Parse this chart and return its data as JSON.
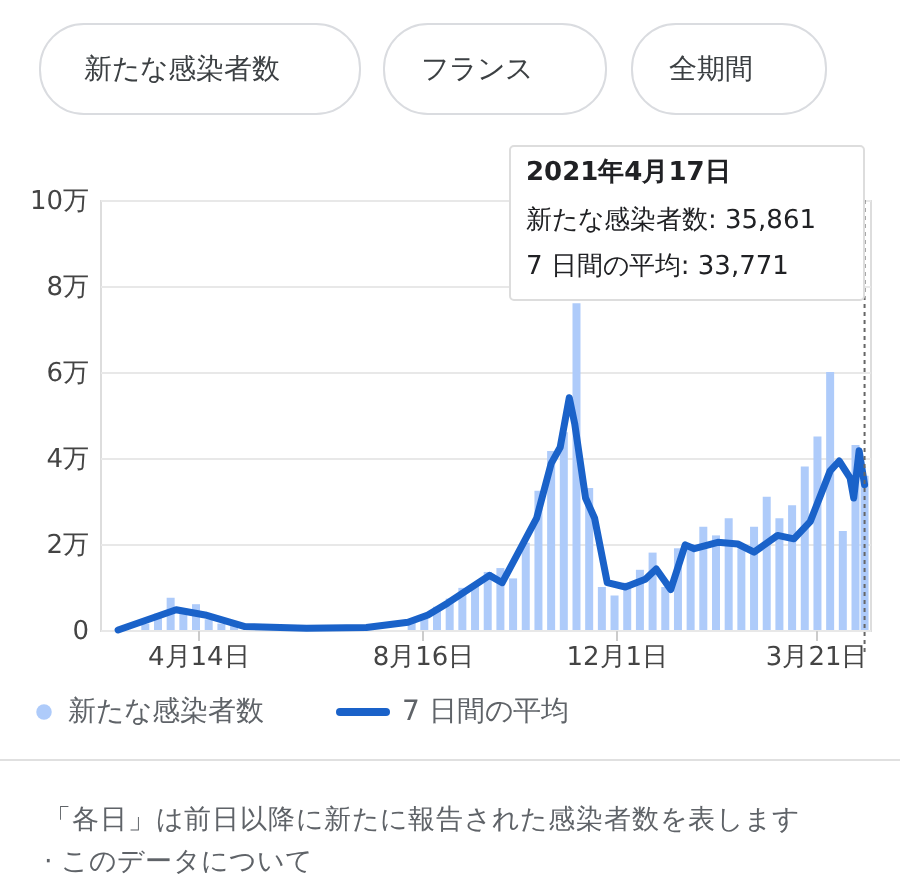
{
  "chart_data": {
    "type": "bar",
    "annotations": [
      "新たな感染者数",
      "フランス",
      "全期間",
      "2021年4月17日",
      "新たな感染者数: 35,861",
      "7 日間の平均: 33,771",
      "「各日」は前日以降に新たに報告された感染者数を表します",
      "· このデータについて"
    ],
    "xlim": [
      "2020-02-20",
      "2021-04-20"
    ],
    "xticks": [
      {
        "value": "2020-04-14",
        "label": "4月14日"
      },
      {
        "value": "2020-08-16",
        "label": "8月16日"
      },
      {
        "value": "2020-12-01",
        "label": "12月1日"
      },
      {
        "value": "2021-03-21",
        "label": "3月21日"
      }
    ],
    "ylim": [
      0,
      10
    ],
    "yticks": [
      0,
      {
        "value": 2,
        "label": "2万"
      },
      {
        "value": 4,
        "label": "4万"
      },
      {
        "value": 6,
        "label": "6万"
      },
      {
        "value": 8,
        "label": "8万"
      },
      {
        "value": 10,
        "label": "10万"
      }
    ],
    "grid": "y",
    "legend": "bottom",
    "ref_lines": [
      {
        "axis": "x",
        "value": "2021-04-17",
        "color": "#666666",
        "line_style": "dotted"
      }
    ],
    "series": [
      {
        "name": "新たな感染者数",
        "color": "#aecbfa",
        "x": [
          "2020-03-02",
          "2020-03-09",
          "2020-03-16",
          "2020-03-23",
          "2020-03-30",
          "2020-04-06",
          "2020-04-13",
          "2020-04-20",
          "2020-04-27",
          "2020-05-04",
          "2020-05-11",
          "2020-05-18",
          "2020-05-25",
          "2020-06-01",
          "2020-06-08",
          "2020-06-15",
          "2020-06-22",
          "2020-06-29",
          "2020-07-06",
          "2020-07-13",
          "2020-07-20",
          "2020-07-27",
          "2020-08-03",
          "2020-08-10",
          "2020-08-17",
          "2020-08-24",
          "2020-08-31",
          "2020-09-07",
          "2020-09-14",
          "2020-09-21",
          "2020-09-28",
          "2020-10-05",
          "2020-10-12",
          "2020-10-19",
          "2020-10-26",
          "2020-11-02",
          "2020-11-09",
          "2020-11-16",
          "2020-11-23",
          "2020-11-30",
          "2020-12-07",
          "2020-12-14",
          "2020-12-21",
          "2020-12-28",
          "2021-01-04",
          "2021-01-11",
          "2021-01-18",
          "2021-01-25",
          "2021-02-01",
          "2021-02-08",
          "2021-02-15",
          "2021-02-22",
          "2021-03-01",
          "2021-03-08",
          "2021-03-15",
          "2021-03-22",
          "2021-03-29",
          "2021-04-05",
          "2021-04-12",
          "2021-04-17"
        ],
        "values": [
          0.02,
          null,
          0.15,
          0.38,
          0.75,
          0.5,
          0.6,
          0.25,
          0.15,
          0.1,
          null,
          0.04,
          0.03,
          0.05,
          0.05,
          0.04,
          0.04,
          0.05,
          0.06,
          null,
          null,
          null,
          null,
          0.25,
          0.33,
          0.54,
          0.73,
          0.98,
          1.06,
          1.35,
          1.44,
          1.2,
          2.03,
          3.24,
          4.16,
          4.6,
          7.6,
          3.3,
          1.0,
          0.8,
          1.1,
          1.4,
          1.8,
          1.0,
          1.9,
          2.0,
          2.4,
          2.2,
          2.6,
          1.9,
          2.4,
          3.1,
          2.6,
          2.9,
          3.8,
          4.5,
          6.0,
          2.3,
          4.3,
          3.59
        ]
      },
      {
        "name": "7 日間の平均",
        "type": "line",
        "color": "#1a62c9",
        "line_style": "solid",
        "x": [
          "2020-03-01",
          "2020-04-02",
          "2020-04-18",
          "2020-05-10",
          "2020-06-13",
          "2020-07-16",
          "2020-08-08",
          "2020-08-19",
          "2020-08-30",
          "2020-09-22",
          "2020-09-29",
          "2020-10-18",
          "2020-10-26",
          "2020-10-31",
          "2020-11-05",
          "2020-11-08",
          "2020-11-14",
          "2020-11-19",
          "2020-11-26",
          "2020-12-06",
          "2020-12-17",
          "2020-12-23",
          "2020-12-31",
          "2021-01-08",
          "2021-01-13",
          "2021-01-26",
          "2021-02-06",
          "2021-02-15",
          "2021-02-28",
          "2021-03-09",
          "2021-03-18",
          "2021-03-29",
          "2021-04-03",
          "2021-04-09",
          "2021-04-11",
          "2021-04-14",
          "2021-04-17"
        ],
        "values": [
          0,
          0.47,
          0.35,
          0.08,
          0.04,
          0.06,
          0.18,
          0.35,
          0.63,
          1.27,
          1.1,
          2.6,
          3.87,
          4.25,
          5.4,
          4.8,
          3.07,
          2.6,
          1.1,
          1.0,
          1.18,
          1.42,
          0.94,
          1.98,
          1.89,
          2.04,
          2.0,
          1.81,
          2.2,
          2.12,
          2.52,
          3.7,
          3.93,
          3.54,
          3.07,
          4.17,
          3.38
        ]
      }
    ]
  }
}
